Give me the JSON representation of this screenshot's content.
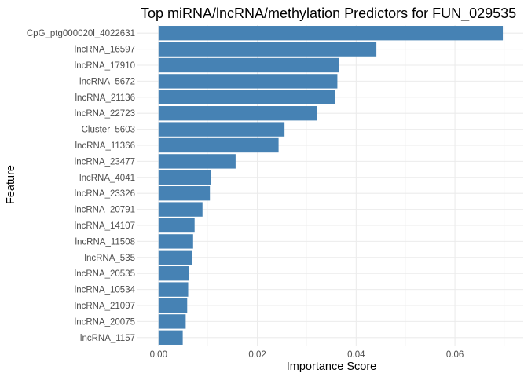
{
  "chart_data": {
    "type": "bar",
    "orientation": "horizontal",
    "title": "Top miRNA/lncRNA/methylation Predictors for FUN_029535",
    "xlabel": "Importance Score",
    "ylabel": "Feature",
    "xlim": [
      0,
      0.07
    ],
    "xticks": [
      0.0,
      0.02,
      0.04,
      0.06
    ],
    "xtick_labels": [
      "0.00",
      "0.02",
      "0.04",
      "0.06"
    ],
    "grid": true,
    "bar_color": "#4682B4",
    "categories": [
      "CpG_ptg000020l_4022631",
      "lncRNA_16597",
      "lncRNA_17910",
      "lncRNA_5672",
      "lncRNA_21136",
      "lncRNA_22723",
      "Cluster_5603",
      "lncRNA_11366",
      "lncRNA_23477",
      "lncRNA_4041",
      "lncRNA_23326",
      "lncRNA_20791",
      "lncRNA_14107",
      "lncRNA_11508",
      "lncRNA_535",
      "lncRNA_20535",
      "lncRNA_10534",
      "lncRNA_21097",
      "lncRNA_20075",
      "lncRNA_1157"
    ],
    "values": [
      0.0697,
      0.0441,
      0.0366,
      0.0362,
      0.0357,
      0.0321,
      0.0255,
      0.0243,
      0.0156,
      0.0106,
      0.0104,
      0.0089,
      0.0073,
      0.007,
      0.0068,
      0.0061,
      0.006,
      0.0058,
      0.0055,
      0.0049
    ]
  }
}
